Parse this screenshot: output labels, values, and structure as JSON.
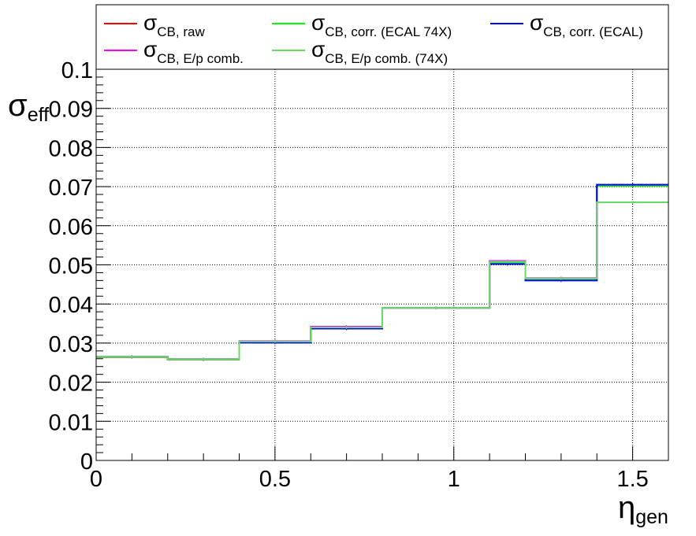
{
  "chart_data": {
    "type": "line",
    "style": "step-histogram",
    "x_bin_edges": [
      0,
      0.2,
      0.4,
      0.6,
      0.8,
      1.1,
      1.2,
      1.4,
      1.6
    ],
    "xlim": [
      0,
      1.6
    ],
    "ylim": [
      0,
      0.1
    ],
    "x_ticks": [
      "0",
      "0.5",
      "1",
      "1.5"
    ],
    "x_tick_values": [
      0,
      0.5,
      1,
      1.5
    ],
    "y_ticks": [
      "0",
      "0.01",
      "0.02",
      "0.03",
      "0.04",
      "0.05",
      "0.06",
      "0.07",
      "0.08",
      "0.09",
      "0.1"
    ],
    "y_tick_values": [
      0,
      0.01,
      0.02,
      0.03,
      0.04,
      0.05,
      0.06,
      0.07,
      0.08,
      0.09,
      0.1
    ],
    "xlabel": {
      "symbol": "η",
      "sub": "gen"
    },
    "ylabel": {
      "symbol": "σ",
      "sub": "eff"
    },
    "grid": true,
    "legend_position": "top",
    "series": [
      {
        "name_symbol": "σ",
        "name_sub": "CB, raw",
        "color": "#ff0000",
        "values": [
          0.0264,
          0.0258,
          0.0302,
          0.0338,
          0.039,
          0.0504,
          0.0462,
          0.0702
        ]
      },
      {
        "name_symbol": "σ",
        "name_sub": "CB, corr. (ECAL 74X)",
        "color": "#00ff00",
        "values": [
          0.0264,
          0.0258,
          0.0302,
          0.0338,
          0.039,
          0.0504,
          0.0462,
          0.0702
        ]
      },
      {
        "name_symbol": "σ",
        "name_sub": "CB, corr. (ECAL)",
        "color": "#0000ff",
        "values": [
          0.0265,
          0.0259,
          0.0301,
          0.0337,
          0.039,
          0.0502,
          0.046,
          0.0705
        ]
      },
      {
        "name_symbol": "σ",
        "name_sub": "CB, E/p comb.",
        "color": "#ff00ff",
        "values": [
          0.0265,
          0.0259,
          0.0305,
          0.0342,
          0.039,
          0.051,
          0.0466,
          0.066
        ]
      },
      {
        "name_symbol": "σ",
        "name_sub": "CB, E/p comb. (74X)",
        "color": "#66dd66",
        "values": [
          0.0265,
          0.0259,
          0.0304,
          0.034,
          0.039,
          0.0508,
          0.0465,
          0.066
        ]
      }
    ]
  }
}
